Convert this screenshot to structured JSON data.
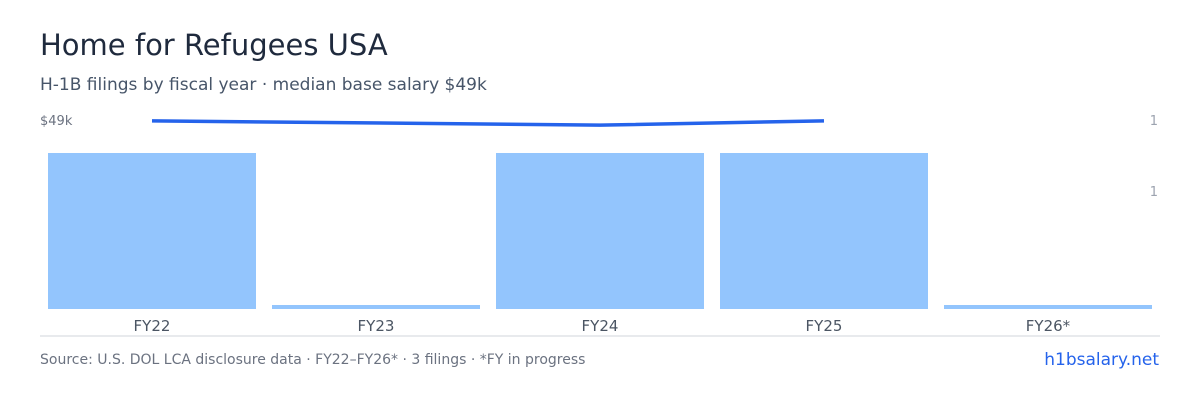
{
  "header": {
    "title": "Home for Refugees USA",
    "subtitle": "H-1B filings by fiscal year · median base salary $49k"
  },
  "footer": {
    "source": "Source: U.S. DOL LCA disclosure data · FY22–FY26* · 3 filings · *FY in progress",
    "site": "h1bsalary.net"
  },
  "colors": {
    "bar": "#93c5fd",
    "line": "#2563eb",
    "axis": "#d1d5db",
    "tick_text": "#6b7280",
    "category_text": "#4b5563",
    "right_tick_text": "#9ca3af"
  },
  "chart_data": {
    "type": "bar",
    "categories": [
      "FY22",
      "FY23",
      "FY24",
      "FY25",
      "FY26*"
    ],
    "series": [
      {
        "type": "bar",
        "values": [
          1,
          0,
          1,
          1,
          0
        ]
      },
      {
        "type": "line",
        "values": [
          49000,
          null,
          48500,
          49000,
          null
        ]
      }
    ],
    "ylabel_left_tick": "$49k",
    "right_ticks": [
      "1",
      "1"
    ],
    "ylim": [
      0,
      1
    ],
    "salary_ylim": [
      0,
      49100
    ],
    "grid": false,
    "legend": "none"
  }
}
